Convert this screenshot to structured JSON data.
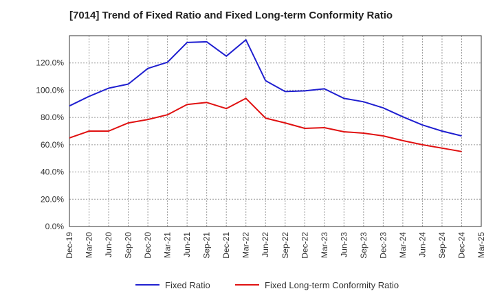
{
  "chart_data": {
    "type": "line",
    "title": "[7014]  Trend of Fixed Ratio and Fixed Long-term Conformity Ratio",
    "xlabel": "",
    "ylabel": "",
    "x_ticks": [
      "Dec-19",
      "Mar-20",
      "Jun-20",
      "Sep-20",
      "Dec-20",
      "Mar-21",
      "Jun-21",
      "Sep-21",
      "Dec-21",
      "Mar-22",
      "Jun-22",
      "Sep-22",
      "Dec-22",
      "Mar-23",
      "Jun-23",
      "Sep-23",
      "Dec-23",
      "Mar-24",
      "Jun-24",
      "Sep-24",
      "Dec-24",
      "Mar-25"
    ],
    "x": [
      "Dec-19",
      "Mar-20",
      "Jun-20",
      "Sep-20",
      "Dec-20",
      "Mar-21",
      "Jun-21",
      "Sep-21",
      "Dec-21",
      "Mar-22",
      "Jun-22",
      "Sep-22",
      "Dec-22",
      "Mar-23",
      "Jun-23",
      "Sep-23",
      "Dec-23",
      "Mar-24",
      "Jun-24",
      "Sep-24",
      "Dec-24"
    ],
    "ylim": [
      0,
      140
    ],
    "y_ticks": [
      {
        "value": 0,
        "label": "0.0%"
      },
      {
        "value": 20,
        "label": "20.0%"
      },
      {
        "value": 40,
        "label": "40.0%"
      },
      {
        "value": 60,
        "label": "60.0%"
      },
      {
        "value": 80,
        "label": "80.0%"
      },
      {
        "value": 100,
        "label": "100.0%"
      },
      {
        "value": 120,
        "label": "120.0%"
      }
    ],
    "grid": true,
    "legend_position": "bottom",
    "series": [
      {
        "name": "Fixed Ratio",
        "color": "#1f1fd0",
        "values": [
          88.5,
          95.5,
          101.5,
          104.5,
          116,
          120.5,
          135,
          135.5,
          125,
          137,
          107,
          99,
          99.5,
          101,
          94,
          91.5,
          87,
          80.5,
          74.5,
          70,
          66.5
        ]
      },
      {
        "name": "Fixed Long-term Conformity Ratio",
        "color": "#e01010",
        "values": [
          65,
          70,
          70,
          76,
          78.5,
          82,
          89.5,
          91,
          86.5,
          94,
          79.5,
          76,
          72,
          72.5,
          69.5,
          68.5,
          66.5,
          63,
          60,
          57.5,
          55
        ]
      }
    ]
  }
}
